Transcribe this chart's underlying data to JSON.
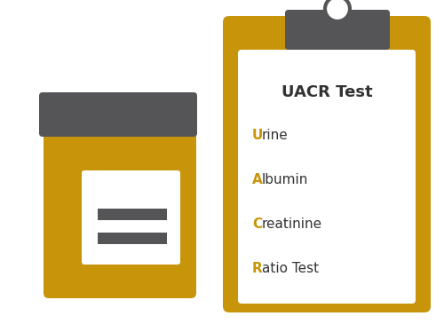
{
  "bg_color": "#ffffff",
  "amber": "#C8940A",
  "gray_lid": "#555558",
  "text_dark": "#333333",
  "text_amber": "#C8940A",
  "title": "UACR Test",
  "lines": [
    {
      "letter": "U",
      "rest": "rine"
    },
    {
      "letter": "A",
      "rest": "lbumin"
    },
    {
      "letter": "C",
      "rest": "reatinine"
    },
    {
      "letter": "R",
      "rest": "atio Test"
    }
  ],
  "figsize": [
    5.0,
    3.65
  ],
  "dpi": 100
}
